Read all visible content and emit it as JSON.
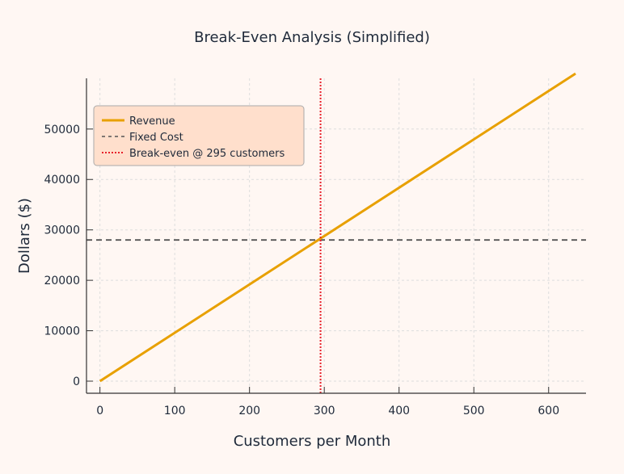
{
  "chart_data": {
    "type": "line",
    "title": "Break-Even Analysis (Simplified)",
    "xlabel": "Customers per Month",
    "ylabel": "Dollars ($)",
    "xlim": [
      -18,
      650
    ],
    "ylim": [
      -2400,
      61500
    ],
    "xticks": [
      0,
      100,
      200,
      300,
      400,
      500,
      600
    ],
    "yticks": [
      0,
      10000,
      20000,
      30000,
      40000,
      50000
    ],
    "grid": true,
    "legend_position": "upper-left",
    "series": [
      {
        "name": "Revenue",
        "style": "solid",
        "color": "#e8a000",
        "x": [
          0,
          636
        ],
        "y": [
          0,
          61000
        ]
      },
      {
        "name": "Fixed Cost",
        "style": "dashed",
        "color": "#555555",
        "x": [
          -18,
          650
        ],
        "y": [
          28000,
          28000
        ]
      },
      {
        "name": "Break-even @ 295 customers",
        "style": "dotted",
        "color": "#e8202a",
        "vline_x": 295
      }
    ]
  }
}
